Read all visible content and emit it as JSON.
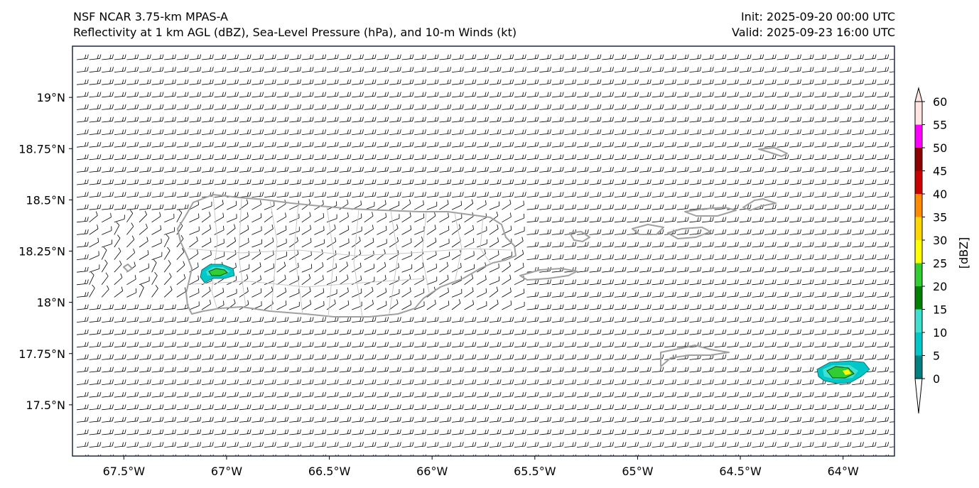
{
  "header": {
    "model_title": "NSF NCAR 3.75-km MPAS-A",
    "field_title": "Reflectivity at 1 km AGL (dBZ), Sea-Level Pressure (hPa), and 10-m Winds (kt)",
    "init": "Init: 2025-09-20 00:00 UTC",
    "valid": "Valid: 2025-09-23 16:00 UTC"
  },
  "map": {
    "extent": {
      "lon_min": -67.75,
      "lon_max": -63.75,
      "lat_min": 17.25,
      "lat_max": 19.25
    },
    "lon_ticks": [
      {
        "value": -67.5,
        "label": "67.5°W"
      },
      {
        "value": -67.0,
        "label": "67°W"
      },
      {
        "value": -66.5,
        "label": "66.5°W"
      },
      {
        "value": -66.0,
        "label": "66°W"
      },
      {
        "value": -65.5,
        "label": "65.5°W"
      },
      {
        "value": -65.0,
        "label": "65°W"
      },
      {
        "value": -64.5,
        "label": "64.5°W"
      },
      {
        "value": -64.0,
        "label": "64°W"
      }
    ],
    "lat_ticks": [
      {
        "value": 19.0,
        "label": "19°N"
      },
      {
        "value": 18.75,
        "label": "18.75°N"
      },
      {
        "value": 18.5,
        "label": "18.5°N"
      },
      {
        "value": 18.25,
        "label": "18.25°N"
      },
      {
        "value": 18.0,
        "label": "18°N"
      },
      {
        "value": 17.75,
        "label": "17.75°N"
      },
      {
        "value": 17.5,
        "label": "17.5°N"
      }
    ],
    "reflectivity_cells": [
      {
        "name": "west-puerto-rico-cell",
        "lon": -67.04,
        "lat": 18.14,
        "peak_dbz": 20
      },
      {
        "name": "st-croix-east-cell",
        "lon": -63.98,
        "lat": 17.66,
        "peak_dbz": 25
      }
    ],
    "colors": {
      "coastline": "#a0a0a0",
      "barb": "#000000",
      "frame": "#1f2a44"
    }
  },
  "colorbar": {
    "label": "[dBZ]",
    "ticks": [
      "0",
      "5",
      "10",
      "15",
      "20",
      "25",
      "30",
      "35",
      "40",
      "45",
      "50",
      "55",
      "60"
    ],
    "colors": [
      "#ffffff",
      "#008080",
      "#00c8c8",
      "#40e0d0",
      "#008000",
      "#32cd32",
      "#ffff00",
      "#ffd700",
      "#ff8c00",
      "#cc0000",
      "#8b0000",
      "#ff00ff",
      "#ffe4e1"
    ]
  }
}
